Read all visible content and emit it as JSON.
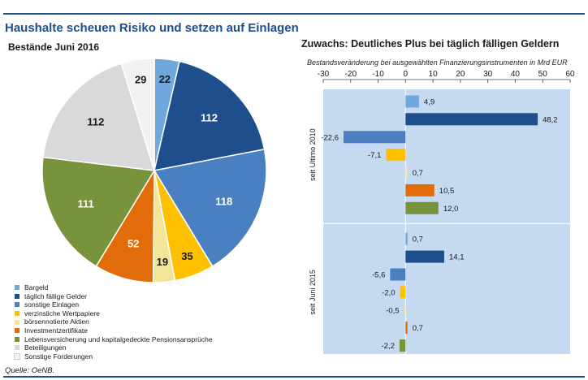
{
  "header": {
    "title": "Haushalte scheuen Risiko und setzen auf Einlagen",
    "left_subtitle": "Bestände Juni 2016",
    "right_title": "Zuwachs: Deutliches Plus bei täglich fälligen Geldern",
    "right_subtitle": "Bestandsveränderung bei ausgewählten Finanzierungsinstrumenten  in  Mrd EUR"
  },
  "source": "Quelle: OeNB.",
  "colors": {
    "Bargeld": "#6fa8dc",
    "täglich fällige Gelder": "#1f4e8c",
    "sonstige Einlagen": "#4a7fc1",
    "verzinsliche Wertpapiere": "#ffc000",
    "börsennotierte Aktien": "#f2e59a",
    "Investmentzertifikate": "#e36c0a",
    "Lebensversicherung": "#77933c",
    "Beteiligungen": "#d9d9d9",
    "Sonstige Forderungen": "#f2f2f2",
    "plot_background": "#c5d9f1",
    "rule": "#1f4e8c"
  },
  "chart_data": [
    {
      "type": "pie",
      "title": "Bestände Juni 2016",
      "slices": [
        {
          "label": "Bargeld",
          "value": 22,
          "color": "#6fa8dc"
        },
        {
          "label": "täglich fällige Gelder",
          "value": 112,
          "color": "#1f4e8c"
        },
        {
          "label": "sonstige Einlagen",
          "value": 118,
          "color": "#4a7fc1"
        },
        {
          "label": "verzinsliche Wertpapiere",
          "value": 35,
          "color": "#ffc000"
        },
        {
          "label": "börsennotierte Aktien",
          "value": 19,
          "color": "#f2e59a"
        },
        {
          "label": "Investmentzertifikate",
          "value": 52,
          "color": "#e36c0a"
        },
        {
          "label": "Lebensversicherung und kapitalgedeckte Pensionsansprüche",
          "value": 111,
          "color": "#77933c"
        },
        {
          "label": "Beteiligungen",
          "value": 112,
          "color": "#d9d9d9"
        },
        {
          "label": "Sonstige Forderungen",
          "value": 29,
          "color": "#f2f2f2"
        }
      ],
      "legend_position": "bottom-left"
    },
    {
      "type": "bar",
      "orientation": "horizontal",
      "title": "Zuwachs: Deutliches Plus bei täglich fälligen Geldern",
      "subtitle": "Bestandsveränderung bei ausgewählten Finanzierungsinstrumenten  in  Mrd EUR",
      "xlim": [
        -30,
        60
      ],
      "xticks": [
        -30,
        -20,
        -10,
        0,
        10,
        20,
        30,
        40,
        50,
        60
      ],
      "xaxis_position": "top",
      "grid": false,
      "groups": [
        {
          "name": "seit Ultimo 2010",
          "bars": [
            {
              "category": "Bargeld",
              "value": 4.9,
              "label": "4,9"
            },
            {
              "category": "täglich fällige Gelder",
              "value": 48.2,
              "label": "48,2"
            },
            {
              "category": "sonstige Einlagen",
              "value": -22.6,
              "label": "-22,6"
            },
            {
              "category": "verzinsliche Wertpapiere",
              "value": -7.1,
              "label": "-7,1"
            },
            {
              "category": "börsennotierte Aktien",
              "value": 0.7,
              "label": "0,7"
            },
            {
              "category": "Investmentzertifikate",
              "value": 10.5,
              "label": "10,5"
            },
            {
              "category": "Lebensversicherung",
              "value": 12.0,
              "label": "12,0"
            }
          ]
        },
        {
          "name": "seit Juni 2015",
          "bars": [
            {
              "category": "Bargeld",
              "value": 0.7,
              "label": "0,7"
            },
            {
              "category": "täglich fällige Gelder",
              "value": 14.1,
              "label": "14,1"
            },
            {
              "category": "sonstige Einlagen",
              "value": -5.6,
              "label": "-5,6"
            },
            {
              "category": "verzinsliche Wertpapiere",
              "value": -2.0,
              "label": "-2,0"
            },
            {
              "category": "börsennotierte Aktien",
              "value": -0.5,
              "label": "-0,5"
            },
            {
              "category": "Investmentzertifikate",
              "value": 0.7,
              "label": "0,7"
            },
            {
              "category": "Lebensversicherung",
              "value": -2.2,
              "label": "-2,2"
            }
          ]
        }
      ]
    }
  ],
  "legend": {
    "items": [
      {
        "label": "Bargeld",
        "color": "#6fa8dc"
      },
      {
        "label": "täglich fällige Gelder",
        "color": "#1f4e8c"
      },
      {
        "label": "sonstige Einlagen",
        "color": "#4a7fc1"
      },
      {
        "label": "verzinsliche Wertpapiere",
        "color": "#ffc000"
      },
      {
        "label": "börsennotierte Aktien",
        "color": "#f2e59a"
      },
      {
        "label": "Investmentzertifikate",
        "color": "#e36c0a"
      },
      {
        "label": "Lebensversicherung und kapitalgedeckte Pensionsansprüche",
        "color": "#77933c"
      },
      {
        "label": "Beteiligungen",
        "color": "#d9d9d9"
      },
      {
        "label": "Sonstige Forderungen",
        "color": "#f2f2f2"
      }
    ]
  }
}
